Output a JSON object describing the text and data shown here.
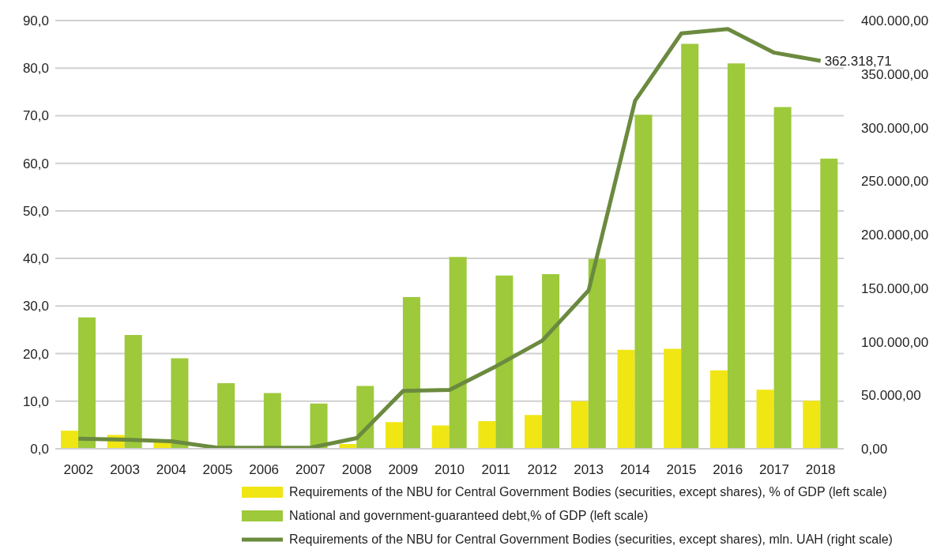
{
  "chart_data": {
    "type": "bar",
    "categories": [
      "2002",
      "2003",
      "2004",
      "2005",
      "2006",
      "2007",
      "2008",
      "2009",
      "2010",
      "2011",
      "2012",
      "2013",
      "2014",
      "2015",
      "2016",
      "2017",
      "2018"
    ],
    "series": [
      {
        "name": "Requirements of the NBU for Central Government Bodies (securities, except shares), % of GDP (left scale)",
        "color": "#f0e614",
        "values": [
          3.8,
          2.9,
          1.6,
          0,
          0,
          0,
          1.0,
          5.6,
          4.9,
          5.8,
          7.1,
          10.0,
          20.8,
          21.0,
          16.5,
          12.4,
          10.1
        ]
      },
      {
        "name": "National and government-guaranteed debt,% of GDP (left scale)",
        "color": "#9dc93b",
        "values": [
          27.6,
          23.9,
          19.0,
          13.8,
          11.7,
          9.5,
          13.2,
          31.9,
          40.3,
          36.4,
          36.7,
          39.9,
          70.2,
          85.1,
          81.0,
          71.8,
          61.0
        ]
      },
      {
        "name": "Requirements of the NBU for Central Government Bodies (securities, except shares), mln. UAH (right scale)",
        "type": "line",
        "axis": "y2",
        "color": "#6b8a3f",
        "values": [
          9500,
          8500,
          7000,
          1000,
          1000,
          1000,
          10000,
          54000,
          55000,
          77000,
          101000,
          148000,
          325000,
          388000,
          392000,
          370000,
          362318.71
        ],
        "value_labels": [
          null,
          null,
          null,
          null,
          null,
          null,
          null,
          null,
          null,
          null,
          null,
          null,
          null,
          null,
          null,
          null,
          "362.318,71"
        ]
      }
    ],
    "ylim": [
      0,
      90
    ],
    "yticks": [
      {
        "value": 0,
        "label": "0,0"
      },
      {
        "value": 10,
        "label": "10,0"
      },
      {
        "value": 20,
        "label": "20,0"
      },
      {
        "value": 30,
        "label": "30,0"
      },
      {
        "value": 40,
        "label": "40,0"
      },
      {
        "value": 50,
        "label": "50,0"
      },
      {
        "value": 60,
        "label": "60,0"
      },
      {
        "value": 70,
        "label": "70,0"
      },
      {
        "value": 80,
        "label": "80,0"
      },
      {
        "value": 90,
        "label": "90,0"
      }
    ],
    "y2lim": [
      0,
      400000
    ],
    "y2ticks": [
      {
        "value": 0,
        "label": "0,00"
      },
      {
        "value": 50000,
        "label": "50.000,00"
      },
      {
        "value": 100000,
        "label": "100.000,00"
      },
      {
        "value": 150000,
        "label": "150.000,00"
      },
      {
        "value": 200000,
        "label": "200.000,00"
      },
      {
        "value": 250000,
        "label": "250.000,00"
      },
      {
        "value": 300000,
        "label": "300.000,00"
      },
      {
        "value": 350000,
        "label": "350.000,00"
      },
      {
        "value": 400000,
        "label": "400.000,00"
      }
    ],
    "grid": "y",
    "legend": "bottom",
    "marker": "none"
  }
}
